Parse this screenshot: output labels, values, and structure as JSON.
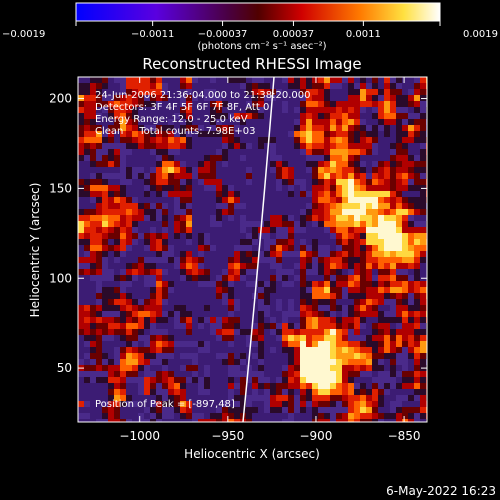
{
  "chart_data": {
    "type": "heatmap",
    "title": "Reconstructed RHESSI Image",
    "xlabel": "Heliocentric X (arcsec)",
    "ylabel": "Heliocentric Y (arcsec)",
    "xlim": [
      -1035,
      -837
    ],
    "ylim": [
      20,
      212
    ],
    "x_ticks": [
      -1000,
      -950,
      -900,
      -850
    ],
    "x_tick_labels": [
      "−1000",
      "−950",
      "−900",
      "−850"
    ],
    "y_ticks": [
      50,
      100,
      150,
      200
    ],
    "y_tick_labels": [
      "50",
      "100",
      "150",
      "200"
    ],
    "colorbar": {
      "ticks": [
        -0.0019,
        -0.0011,
        -0.00037,
        0.00037,
        0.0011,
        0.0019
      ],
      "tick_labels": [
        "−0.0019",
        "−0.0011",
        "−0.00037",
        "0.00037",
        "0.0011",
        "0.0019"
      ],
      "unit_label": "(photons cm⁻² s⁻¹ asec⁻²)",
      "colors": [
        "#0000ff",
        "#6600cc",
        "#b40000",
        "#ff7000",
        "#ffff30",
        "#ffffff"
      ]
    },
    "annotations": [
      "24-Jun-2006 21:36:04.000 to 21:38:20.000",
      "Detectors: 3F 4F 5F 6F 7F 8F, Att 0",
      "Energy Range: 12.0 - 25.0 keV",
      "Clean     Total counts: 7.98E+03"
    ],
    "peak_label": "Position of Peak = [-897,48]",
    "peak": [
      -897,
      48
    ],
    "limb_color": "#ffffff"
  },
  "footer": {
    "date": "6-May-2022 16:23"
  }
}
